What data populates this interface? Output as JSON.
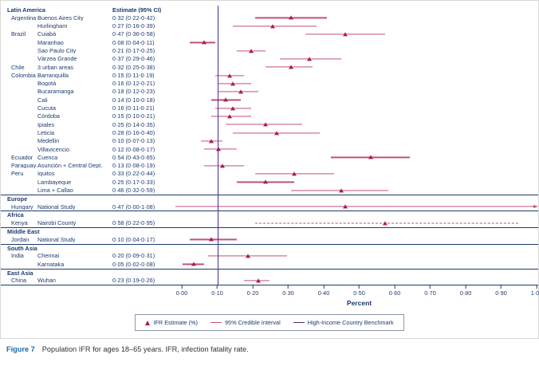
{
  "chart_data": {
    "type": "scatter",
    "subtype": "forest-plot",
    "title": "",
    "xlabel": "Percent",
    "xlim": [
      0,
      1.0
    ],
    "xticks": [
      "0·00",
      "0·10",
      "0·20",
      "0·30",
      "0·40",
      "0·50",
      "0·60",
      "0·70",
      "0·80",
      "0·90",
      "1·00"
    ],
    "grid": false,
    "benchmark": 0.1,
    "estimate_header": "Estimate (95% CI)",
    "marker_color": "#ad1a4f",
    "interval_color": "#c0527a",
    "benchmark_color": "#4b2e83",
    "text_color": "#1d3a6d",
    "sections": [
      {
        "region": "Latin America",
        "rows": [
          {
            "country": "Argentina",
            "location": "Buenos Aires City",
            "label": "0·32 (0·22-0·42)",
            "est": 0.32,
            "lo": 0.22,
            "hi": 0.42
          },
          {
            "country": "",
            "location": "Hurlingham",
            "label": "0·27 (0·16-0·39)",
            "est": 0.27,
            "lo": 0.16,
            "hi": 0.39
          },
          {
            "country": "Brazil",
            "location": "Cuiabá",
            "label": "0·47 (0·36-0·58)",
            "est": 0.47,
            "lo": 0.36,
            "hi": 0.58
          },
          {
            "country": "",
            "location": "Maranhao",
            "label": "0·08 (0·04-0·11)",
            "est": 0.08,
            "lo": 0.04,
            "hi": 0.11
          },
          {
            "country": "",
            "location": "Sao Paulo City",
            "label": "0·21 (0·17-0·25)",
            "est": 0.21,
            "lo": 0.17,
            "hi": 0.25
          },
          {
            "country": "",
            "location": "Várzea Grande",
            "label": "0·37 (0·29-0·46)",
            "est": 0.37,
            "lo": 0.29,
            "hi": 0.46
          },
          {
            "country": "Chile",
            "location": "3 urban areas",
            "label": "0·32 (0·25-0·38)",
            "est": 0.32,
            "lo": 0.25,
            "hi": 0.38
          },
          {
            "country": "Colombia",
            "location": "Barranquilla",
            "label": "0·15 (0·11-0·19)",
            "est": 0.15,
            "lo": 0.11,
            "hi": 0.19
          },
          {
            "country": "",
            "location": "Bogotá",
            "label": "0·16 (0·12-0·21)",
            "est": 0.16,
            "lo": 0.12,
            "hi": 0.21
          },
          {
            "country": "",
            "location": "Bucaramanga",
            "label": "0·18 (0·12-0·23)",
            "est": 0.18,
            "lo": 0.12,
            "hi": 0.23
          },
          {
            "country": "",
            "location": "Cali",
            "label": "0·14 (0·10-0·18)",
            "est": 0.14,
            "lo": 0.1,
            "hi": 0.18
          },
          {
            "country": "",
            "location": "Cucuta",
            "label": "0·16 (0·11-0·21)",
            "est": 0.16,
            "lo": 0.11,
            "hi": 0.21
          },
          {
            "country": "",
            "location": "Córdoba",
            "label": "0·15 (0·10-0·21)",
            "est": 0.15,
            "lo": 0.1,
            "hi": 0.21
          },
          {
            "country": "",
            "location": "Ipiales",
            "label": "0·25 (0·14-0·35)",
            "est": 0.25,
            "lo": 0.14,
            "hi": 0.35
          },
          {
            "country": "",
            "location": "Leticia",
            "label": "0·28 (0·16-0·40)",
            "est": 0.28,
            "lo": 0.16,
            "hi": 0.4
          },
          {
            "country": "",
            "location": "Medellin",
            "label": "0·10 (0·07-0·13)",
            "est": 0.1,
            "lo": 0.07,
            "hi": 0.13
          },
          {
            "country": "",
            "location": "Villavicencio",
            "label": "0·12 (0·08-0·17)",
            "est": 0.12,
            "lo": 0.08,
            "hi": 0.17
          },
          {
            "country": "Ecuador",
            "location": "Cuenca",
            "label": "0·54 (0·43-0·65)",
            "est": 0.54,
            "lo": 0.43,
            "hi": 0.65
          },
          {
            "country": "Paraguay",
            "location": "Asunción + Central Dept.",
            "label": "0·13 (0·08-0·19)",
            "est": 0.13,
            "lo": 0.08,
            "hi": 0.19
          },
          {
            "country": "Peru",
            "location": "Iquitos",
            "label": "0·33 (0·22-0·44)",
            "est": 0.33,
            "lo": 0.22,
            "hi": 0.44
          },
          {
            "country": "",
            "location": "Lambayeque",
            "label": "0·25 (0·17-0·33)",
            "est": 0.25,
            "lo": 0.17,
            "hi": 0.33
          },
          {
            "country": "",
            "location": "Lima + Callao",
            "label": "0·46 (0·32-0·59)",
            "est": 0.46,
            "lo": 0.32,
            "hi": 0.59
          }
        ]
      },
      {
        "region": "Europe",
        "rows": [
          {
            "country": "Hungary",
            "location": "National Study",
            "label": "0·47 (0·00-1·08)",
            "est": 0.47,
            "lo": 0.0,
            "hi": 1.08,
            "arrow": true
          }
        ]
      },
      {
        "region": "Africa",
        "rows": [
          {
            "country": "Kenya",
            "location": "Nairobi County",
            "label": "0·58 (0·22-0·95)",
            "est": 0.58,
            "lo": 0.22,
            "hi": 0.95,
            "dashed": true
          }
        ]
      },
      {
        "region": "Middle East",
        "rows": [
          {
            "country": "Jordan",
            "location": "National Study",
            "label": "0·10 (0·04-0·17)",
            "est": 0.1,
            "lo": 0.04,
            "hi": 0.17
          }
        ]
      },
      {
        "region": "South Asia",
        "rows": [
          {
            "country": "India",
            "location": "Chennai",
            "label": "0·20 (0·09-0·31)",
            "est": 0.2,
            "lo": 0.09,
            "hi": 0.31
          },
          {
            "country": "",
            "location": "Karnataka",
            "label": "0·05 (0·02-0·08)",
            "est": 0.05,
            "lo": 0.02,
            "hi": 0.08
          }
        ]
      },
      {
        "region": "East Asia",
        "rows": [
          {
            "country": "China",
            "location": "Wuhan",
            "label": "0·23 (0·19-0·26)",
            "est": 0.23,
            "lo": 0.19,
            "hi": 0.26
          }
        ]
      }
    ],
    "legend": [
      {
        "type": "triangle",
        "label": "IFR Estimate (%)"
      },
      {
        "type": "line",
        "label": "95% Credible Interval"
      },
      {
        "type": "vline",
        "label": "High-Income Country Benchmark"
      }
    ],
    "caption_label": "Figure 7",
    "caption_text": "Population IFR for ages 18–65 years. IFR, infection fatality rate."
  }
}
